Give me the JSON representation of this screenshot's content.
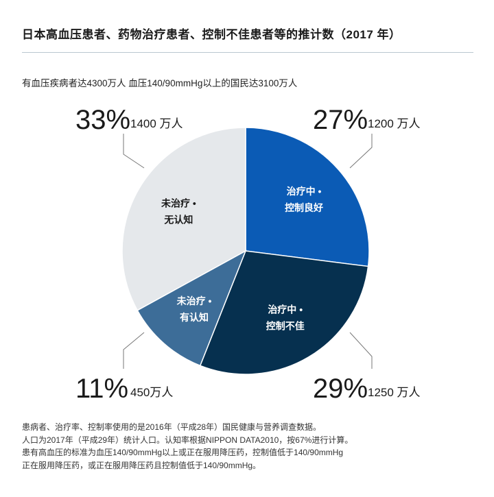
{
  "title": "日本高血压患者、药物治疗患者、控制不佳患者等的推计数（2017 年）",
  "subtitle": "有血压疾病者达4300万人 血压140/90mmHg以上的国民达3100万人",
  "chart_data": {
    "type": "pie",
    "slices": [
      {
        "label_lines": [
          "治疗中 •",
          "控制良好"
        ],
        "percent_text": "27%",
        "count_text": "1200 万人",
        "value": 27,
        "color": "#0b5bb5",
        "label_color": "#ffffff"
      },
      {
        "label_lines": [
          "治疗中 •",
          "控制不佳"
        ],
        "percent_text": "29%",
        "count_text": "1250 万人",
        "value": 29,
        "color": "#06304f",
        "label_color": "#ffffff"
      },
      {
        "label_lines": [
          "未治疗 •",
          "有认知"
        ],
        "percent_text": "11%",
        "count_text": "450万人",
        "value": 11,
        "color": "#3d6d98",
        "label_color": "#ffffff"
      },
      {
        "label_lines": [
          "未治疗 •",
          "无认知"
        ],
        "percent_text": "33%",
        "count_text": "1400 万人",
        "value": 33,
        "color": "#e5e8eb",
        "label_color": "#1a1a1a"
      }
    ]
  },
  "notes": [
    "患病者、治疗率、控制率使用的是2016年（平成28年）国民健康与营养调查数据。",
    "人口为2017年（平成29年）统计人口。认知率根据NIPPON DATA2010，按67%进行计算。",
    "患有高血压的标准为血压140/90mmHg以上或正在服用降压药，控制值低于140/90mmHg",
    "正在服用降压药，或正在服用降压药且控制值低于140/90mmHg。"
  ]
}
